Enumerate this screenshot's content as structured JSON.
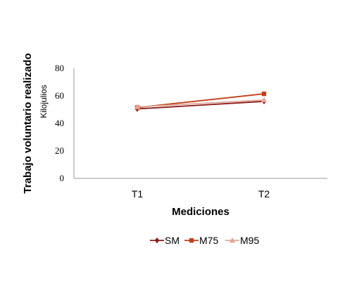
{
  "chart_data": {
    "type": "line",
    "title": "",
    "xlabel": "Mediciones",
    "ylabel": "Trabajo voluntario realizado",
    "ylabel_sub": "Kilojulios",
    "categories": [
      "T1",
      "T2"
    ],
    "ylim": [
      0,
      80
    ],
    "yticks": [
      "0",
      "20",
      "40",
      "60",
      "80"
    ],
    "grid": false,
    "legend_position": "bottom",
    "series": [
      {
        "name": "SM",
        "values": [
          50.5,
          56.0
        ],
        "color": "#8B1A1A",
        "marker": "diamond"
      },
      {
        "name": "M75",
        "values": [
          51.5,
          61.5
        ],
        "color": "#C0401A",
        "marker": "square"
      },
      {
        "name": "M95",
        "values": [
          52.0,
          57.0
        ],
        "color": "#E0A898",
        "marker": "triangle"
      }
    ]
  }
}
